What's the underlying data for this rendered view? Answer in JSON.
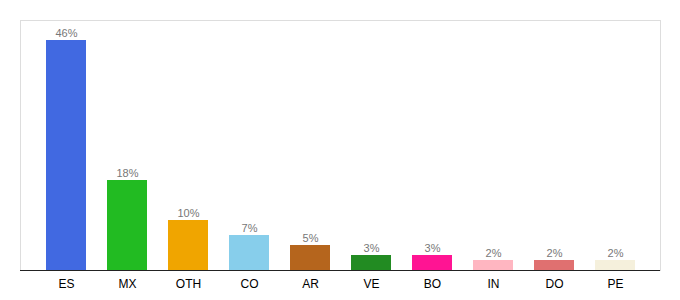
{
  "chart_data": {
    "type": "bar",
    "categories": [
      "ES",
      "MX",
      "OTH",
      "CO",
      "AR",
      "VE",
      "BO",
      "IN",
      "DO",
      "PE"
    ],
    "values": [
      46,
      18,
      10,
      7,
      5,
      3,
      3,
      2,
      2,
      2
    ],
    "value_labels": [
      "46%",
      "18%",
      "10%",
      "7%",
      "5%",
      "3%",
      "3%",
      "2%",
      "2%",
      "2%"
    ],
    "colors": [
      "#4169e1",
      "#22bb22",
      "#f0a500",
      "#87ceeb",
      "#b5651d",
      "#228B22",
      "#ff1493",
      "#ffb6c1",
      "#e07070",
      "#f5f0dc"
    ],
    "ylim": [
      0,
      50
    ],
    "data_labels": true,
    "tick_labels": "x",
    "grid": false
  }
}
